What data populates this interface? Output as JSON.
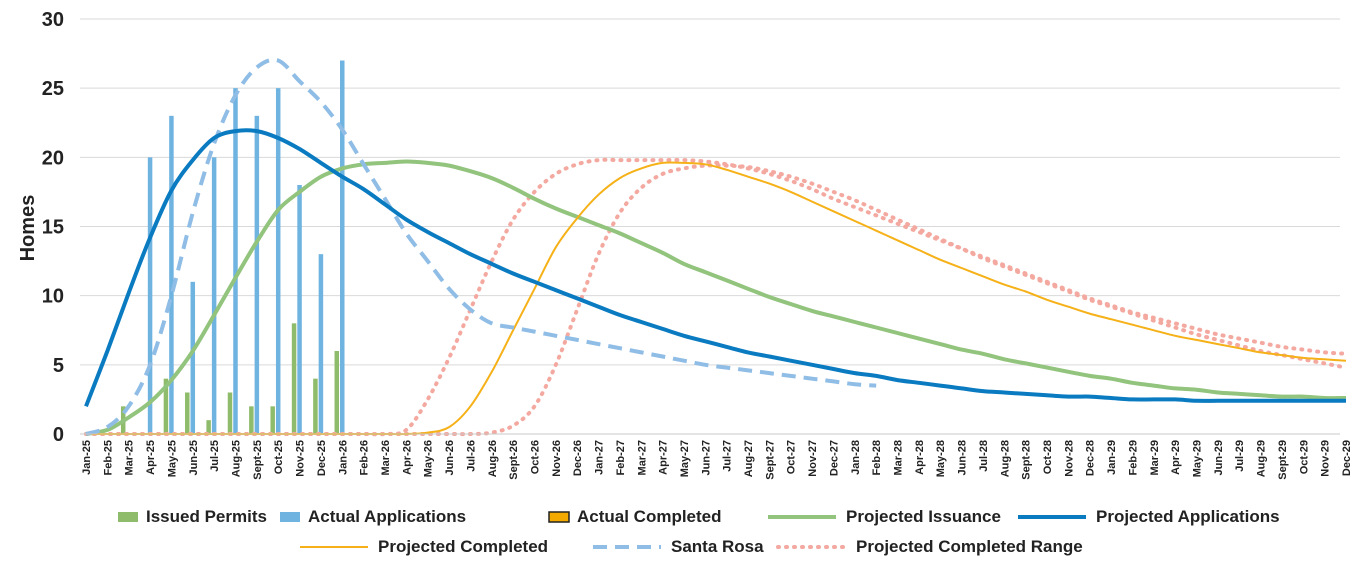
{
  "chart_data": {
    "type": "bar",
    "title": "",
    "xlabel": "",
    "ylabel": "Homes",
    "ylim": [
      0,
      30
    ],
    "yticks": [
      0,
      5,
      10,
      15,
      20,
      25,
      30
    ],
    "grid": true,
    "legend_position": "bottom",
    "categories": [
      "Jan-25",
      "Feb-25",
      "Mar-25",
      "Apr-25",
      "May-25",
      "Jun-25",
      "Jul-25",
      "Aug-25",
      "Sept-25",
      "Oct-25",
      "Nov-25",
      "Dec-25",
      "Jan-26",
      "Feb-26",
      "Mar-26",
      "Apr-26",
      "May-26",
      "Jun-26",
      "Jul-26",
      "Aug-26",
      "Sept-26",
      "Oct-26",
      "Nov-26",
      "Dec-26",
      "Jan-27",
      "Feb-27",
      "Mar-27",
      "Apr-27",
      "May-27",
      "Jun-27",
      "Jul-27",
      "Aug-27",
      "Sept-27",
      "Oct-27",
      "Nov-27",
      "Dec-27",
      "Jan-28",
      "Feb-28",
      "Mar-28",
      "Apr-28",
      "May-28",
      "Jun-28",
      "Jul-28",
      "Aug-28",
      "Sept-28",
      "Oct-28",
      "Nov-28",
      "Dec-28",
      "Jan-29",
      "Feb-29",
      "Mar-29",
      "Apr-29",
      "May-29",
      "Jun-29",
      "Jul-29",
      "Aug-29",
      "Sept-29",
      "Oct-29",
      "Nov-29",
      "Dec-29"
    ],
    "bar_series": [
      {
        "name": "Issued Permits",
        "color": "#8fbc6b",
        "values": [
          0,
          0,
          2,
          0,
          4,
          3,
          1,
          3,
          2,
          2,
          8,
          4,
          6
        ]
      },
      {
        "name": "Actual Applications",
        "color": "#6fb3e0",
        "values": [
          0,
          0,
          0,
          20,
          23,
          11,
          20,
          25,
          23,
          25,
          18,
          13,
          27
        ]
      },
      {
        "name": "Actual Completed",
        "color": "#f2a900",
        "values": [
          0,
          0,
          0,
          0,
          0,
          0,
          0,
          0,
          0,
          0,
          0,
          0,
          0
        ]
      }
    ],
    "line_series": [
      {
        "name": "Projected Issuance",
        "color": "#92c47d",
        "style": "solid",
        "values": [
          0,
          0.3,
          1.2,
          2.3,
          3.9,
          6,
          8.6,
          11.3,
          13.9,
          16.2,
          17.5,
          18.6,
          19.2,
          19.5,
          19.6,
          19.7,
          19.6,
          19.4,
          19,
          18.5,
          17.8,
          17,
          16.3,
          15.7,
          15.1,
          14.5,
          13.8,
          13.1,
          12.3,
          11.7,
          11.1,
          10.5,
          9.9,
          9.4,
          8.9,
          8.5,
          8.1,
          7.7,
          7.3,
          6.9,
          6.5,
          6.1,
          5.8,
          5.4,
          5.1,
          4.8,
          4.5,
          4.2,
          4,
          3.7,
          3.5,
          3.3,
          3.2,
          3,
          2.9,
          2.8,
          2.7,
          2.7,
          2.6,
          2.6
        ]
      },
      {
        "name": "Projected Applications",
        "color": "#0a7bc1",
        "style": "solid",
        "values": [
          2,
          6,
          10.2,
          14.2,
          17.6,
          19.8,
          21.4,
          21.9,
          21.9,
          21.4,
          20.6,
          19.6,
          18.6,
          17.7,
          16.6,
          15.5,
          14.6,
          13.8,
          13,
          12.3,
          11.6,
          11,
          10.4,
          9.8,
          9.2,
          8.6,
          8.1,
          7.6,
          7.1,
          6.7,
          6.3,
          5.9,
          5.6,
          5.3,
          5,
          4.7,
          4.4,
          4.2,
          3.9,
          3.7,
          3.5,
          3.3,
          3.1,
          3,
          2.9,
          2.8,
          2.7,
          2.7,
          2.6,
          2.5,
          2.5,
          2.5,
          2.4,
          2.4,
          2.4,
          2.4,
          2.4,
          2.4,
          2.4,
          2.4
        ]
      },
      {
        "name": "Projected Completed",
        "color": "#f5b117",
        "style": "solid",
        "values": [
          0,
          0,
          0,
          0,
          0,
          0,
          0,
          0,
          0,
          0,
          0,
          0,
          0,
          0,
          0,
          0,
          0.1,
          0.5,
          2,
          4.5,
          7.5,
          10.5,
          13.5,
          15.6,
          17.3,
          18.5,
          19.2,
          19.6,
          19.6,
          19.5,
          19.1,
          18.6,
          18.1,
          17.5,
          16.8,
          16.1,
          15.4,
          14.7,
          14,
          13.3,
          12.6,
          12,
          11.4,
          10.8,
          10.3,
          9.7,
          9.2,
          8.7,
          8.3,
          7.9,
          7.5,
          7.1,
          6.8,
          6.5,
          6.2,
          5.9,
          5.7,
          5.5,
          5.4,
          5.3
        ]
      },
      {
        "name": "Santa Rosa",
        "color": "#8fbde6",
        "style": "dashed",
        "values": [
          0,
          0.5,
          2,
          5,
          10,
          16,
          21,
          24.5,
          26.5,
          27,
          25.5,
          24,
          22,
          19.5,
          17,
          14.5,
          12.5,
          10.5,
          9,
          8,
          7.7,
          7.4,
          7.1,
          6.8,
          6.5,
          6.2,
          5.9,
          5.6,
          5.3,
          5,
          4.8,
          4.6,
          4.4,
          4.2,
          4,
          3.8,
          3.6,
          3.5,
          3.4,
          3.3,
          3.2,
          3.1,
          3,
          2.9,
          2.8,
          2.8,
          2.7,
          2.7,
          2.6,
          2.6,
          2.6,
          2.5,
          2.5,
          2.5,
          2.5,
          2.5,
          2.5,
          2.5,
          2.5,
          2.5
        ],
        "end_index": 37
      },
      {
        "name": "Projected Completed Range",
        "color": "#f4a9a0",
        "style": "dotted",
        "values_upper": [
          0,
          0,
          0,
          0,
          0,
          0,
          0,
          0,
          0,
          0,
          0,
          0,
          0,
          0,
          0,
          0.3,
          2.5,
          5.5,
          9,
          12.5,
          15.5,
          17.5,
          18.8,
          19.5,
          19.8,
          19.8,
          19.8,
          19.8,
          19.8,
          19.7,
          19.5,
          19.2,
          18.8,
          18.3,
          17.7,
          17,
          16.4,
          15.8,
          15.2,
          14.6,
          14,
          13.4,
          12.8,
          12.2,
          11.6,
          11,
          10.4,
          9.8,
          9.3,
          8.8,
          8.4,
          8,
          7.6,
          7.2,
          6.9,
          6.6,
          6.3,
          6.1,
          5.9,
          5.8
        ],
        "values_lower": [
          0,
          0,
          0,
          0,
          0,
          0,
          0,
          0,
          0,
          0,
          0,
          0,
          0,
          0,
          0,
          0,
          0,
          0,
          0,
          0.1,
          0.6,
          2,
          5,
          9,
          13,
          16,
          17.8,
          18.8,
          19.2,
          19.4,
          19.4,
          19.3,
          19,
          18.6,
          18.1,
          17.5,
          16.9,
          16.2,
          15.5,
          14.8,
          14.1,
          13.4,
          12.7,
          12.1,
          11.5,
          10.9,
          10.3,
          9.7,
          9.2,
          8.7,
          8.2,
          7.7,
          7.2,
          6.8,
          6.4,
          6,
          5.7,
          5.4,
          5.1,
          4.8
        ]
      }
    ],
    "legend": {
      "row1": [
        "Issued Permits",
        "Actual Applications",
        "Actual Completed",
        "Projected Issuance",
        "Projected Applications"
      ],
      "row2": [
        "Projected Completed",
        "Santa Rosa",
        "Projected Completed Range"
      ]
    }
  }
}
